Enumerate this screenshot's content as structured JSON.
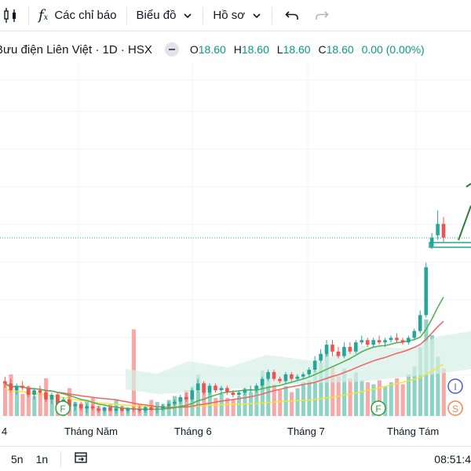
{
  "toolbar": {
    "indicators_label": "Các chỉ báo",
    "chart_type_label": "Biểu đồ",
    "profile_label": "Hồ sơ"
  },
  "legend": {
    "title": "Bưu điện Liên Việt · 1D · HSX",
    "o_label": "O",
    "o_value": "18.60",
    "h_label": "H",
    "h_value": "18.60",
    "l_label": "L",
    "l_value": "18.60",
    "c_label": "C",
    "c_value": "18.60",
    "change": "0.00 (0.00%)"
  },
  "xaxis": {
    "labels": [
      "4",
      "Tháng Năm",
      "Tháng 6",
      "Tháng 7",
      "Tháng Tám"
    ]
  },
  "markers": {
    "f1": "F",
    "f2": "F",
    "i": "I",
    "s": "S"
  },
  "bottom": {
    "range_5n": "5n",
    "range_1n": "1n",
    "time": "08:51:4"
  },
  "colors": {
    "up": "#26a69a",
    "down": "#ef5350",
    "vol_up": "#8fd3c4",
    "vol_down": "#f7a9a7",
    "ma_green": "#4caf50",
    "ma_red": "#f06262",
    "ma_yellow": "#f5e23a"
  },
  "chart_data": {
    "type": "candlestick",
    "ohlc": [
      [
        11.1,
        11.3,
        10.8,
        11.0
      ],
      [
        11.0,
        11.2,
        10.6,
        10.7
      ],
      [
        10.7,
        11.0,
        10.5,
        10.9
      ],
      [
        10.9,
        11.1,
        10.7,
        10.8
      ],
      [
        10.8,
        10.9,
        10.4,
        10.5
      ],
      [
        10.5,
        10.8,
        10.3,
        10.7
      ],
      [
        10.7,
        10.9,
        10.5,
        10.6
      ],
      [
        10.6,
        10.7,
        10.2,
        10.3
      ],
      [
        10.3,
        10.6,
        10.1,
        10.5
      ],
      [
        10.5,
        10.6,
        10.0,
        10.1
      ],
      [
        10.1,
        10.4,
        10.0,
        10.3
      ],
      [
        10.3,
        10.4,
        9.9,
        10.0
      ],
      [
        10.0,
        10.2,
        9.8,
        10.1
      ],
      [
        10.1,
        10.2,
        9.8,
        9.9
      ],
      [
        9.9,
        10.1,
        9.7,
        10.0
      ],
      [
        10.0,
        10.1,
        9.8,
        9.9
      ],
      [
        9.9,
        10.0,
        9.7,
        9.8
      ],
      [
        9.8,
        10.0,
        9.7,
        9.95
      ],
      [
        9.95,
        10.0,
        9.75,
        9.8
      ],
      [
        9.8,
        10.0,
        9.7,
        9.9
      ],
      [
        9.9,
        10.0,
        9.75,
        9.8
      ],
      [
        9.8,
        9.95,
        9.7,
        9.9
      ],
      [
        9.9,
        10.0,
        9.75,
        9.85
      ],
      [
        9.85,
        10.0,
        9.7,
        9.8
      ],
      [
        9.8,
        10.0,
        9.7,
        9.95
      ],
      [
        9.95,
        10.05,
        9.8,
        9.85
      ],
      [
        9.85,
        10.0,
        9.7,
        9.9
      ],
      [
        9.9,
        10.1,
        9.8,
        10.0
      ],
      [
        10.0,
        10.2,
        9.9,
        10.1
      ],
      [
        10.1,
        10.3,
        10.0,
        10.2
      ],
      [
        10.2,
        10.5,
        10.1,
        10.4
      ],
      [
        10.4,
        10.6,
        10.2,
        10.3
      ],
      [
        10.3,
        10.8,
        10.2,
        10.7
      ],
      [
        10.7,
        11.2,
        10.6,
        11.0
      ],
      [
        11.0,
        11.1,
        10.5,
        10.6
      ],
      [
        10.6,
        11.0,
        10.5,
        10.9
      ],
      [
        10.9,
        11.0,
        10.6,
        10.7
      ],
      [
        10.7,
        10.9,
        10.5,
        10.8
      ],
      [
        10.8,
        10.9,
        10.5,
        10.6
      ],
      [
        10.6,
        10.7,
        10.4,
        10.5
      ],
      [
        10.5,
        10.7,
        10.4,
        10.6
      ],
      [
        10.6,
        10.8,
        10.5,
        10.7
      ],
      [
        10.7,
        10.9,
        10.6,
        10.75
      ],
      [
        10.75,
        11.0,
        10.6,
        10.9
      ],
      [
        10.9,
        11.3,
        10.8,
        11.2
      ],
      [
        11.2,
        11.6,
        11.1,
        11.5
      ],
      [
        11.5,
        11.6,
        11.1,
        11.2
      ],
      [
        11.2,
        11.3,
        11.0,
        11.1
      ],
      [
        11.1,
        11.5,
        11.0,
        11.4
      ],
      [
        11.4,
        11.5,
        11.1,
        11.2
      ],
      [
        11.2,
        11.4,
        11.1,
        11.3
      ],
      [
        11.3,
        11.5,
        11.2,
        11.4
      ],
      [
        11.4,
        11.7,
        11.3,
        11.6
      ],
      [
        11.6,
        12.2,
        11.5,
        12.0
      ],
      [
        12.0,
        12.5,
        11.9,
        12.3
      ],
      [
        12.3,
        12.9,
        12.2,
        12.7
      ],
      [
        12.7,
        12.9,
        12.2,
        12.4
      ],
      [
        12.4,
        12.6,
        12.1,
        12.2
      ],
      [
        12.2,
        12.8,
        12.1,
        12.6
      ],
      [
        12.6,
        12.8,
        12.3,
        12.4
      ],
      [
        12.4,
        12.9,
        12.3,
        12.8
      ],
      [
        12.8,
        13.1,
        12.7,
        12.9
      ],
      [
        12.9,
        13.0,
        12.6,
        12.7
      ],
      [
        12.7,
        13.0,
        12.6,
        12.9
      ],
      [
        12.9,
        13.1,
        12.7,
        12.8
      ],
      [
        12.8,
        13.0,
        12.6,
        12.9
      ],
      [
        12.9,
        13.1,
        12.8,
        13.0
      ],
      [
        13.0,
        13.2,
        12.8,
        12.9
      ],
      [
        12.9,
        13.0,
        12.7,
        12.8
      ],
      [
        12.8,
        13.1,
        12.7,
        13.0
      ],
      [
        13.0,
        13.4,
        12.9,
        13.3
      ],
      [
        13.3,
        14.2,
        13.2,
        14.0
      ],
      [
        14.0,
        16.3,
        13.9,
        16.1
      ],
      [
        17.0,
        17.6,
        16.9,
        17.4
      ],
      [
        17.5,
        18.6,
        17.3,
        18.0
      ],
      [
        18.0,
        18.3,
        17.2,
        17.4
      ]
    ],
    "volume": [
      1.8,
      2.2,
      1.4,
      1.2,
      1.6,
      1.1,
      1.3,
      2.0,
      1.0,
      1.2,
      0.9,
      1.5,
      0.8,
      0.7,
      0.9,
      1.0,
      0.6,
      0.5,
      0.7,
      0.9,
      0.6,
      0.5,
      4.5,
      0.7,
      0.6,
      0.9,
      0.8,
      0.7,
      0.9,
      1.1,
      1.0,
      1.4,
      1.6,
      2.2,
      1.8,
      1.3,
      1.0,
      1.2,
      1.0,
      0.9,
      1.1,
      1.5,
      1.3,
      1.6,
      2.4,
      2.0,
      1.7,
      1.4,
      1.6,
      1.3,
      1.5,
      1.8,
      1.9,
      2.4,
      2.8,
      3.3,
      2.6,
      2.1,
      2.5,
      2.0,
      2.3,
      1.9,
      1.8,
      1.7,
      1.9,
      1.6,
      1.8,
      2.0,
      1.7,
      2.2,
      2.6,
      3.6,
      5.0,
      4.2,
      3.1,
      2.5
    ],
    "last_price": 18.6,
    "ma_green_end": 15.2,
    "ma_red_end": 13.8,
    "ma_yellow_end": 12.0
  }
}
